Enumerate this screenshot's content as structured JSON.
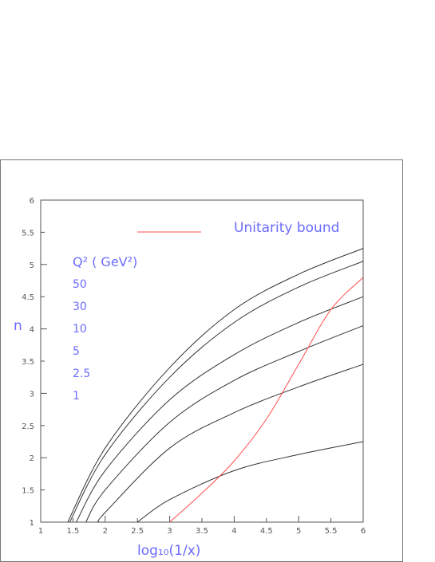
{
  "chart_data": {
    "type": "line",
    "xlabel": "log₁₀(1/x)",
    "ylabel": "n",
    "xlim": [
      1,
      6
    ],
    "ylim": [
      1,
      6
    ],
    "x_ticks": [
      1,
      1.5,
      2,
      2.5,
      3,
      3.5,
      4,
      4.5,
      5,
      5.5,
      6
    ],
    "y_ticks": [
      1,
      1.5,
      2,
      2.5,
      3,
      3.5,
      4,
      4.5,
      5,
      5.5,
      6
    ],
    "x_tick_labels": [
      "1",
      "1.5",
      "2",
      "2.5",
      "3",
      "3.5",
      "4",
      "4.5",
      "5",
      "5.5",
      "6"
    ],
    "y_tick_labels": [
      "1",
      "1.5",
      "2",
      "2.5",
      "3",
      "3.5",
      "4",
      "4.5",
      "5",
      "5.5",
      "6"
    ],
    "legend": {
      "unitarity_label": "Unitarity bound",
      "q2_header": "Q² ( GeV²)",
      "q2_values": [
        "50",
        "30",
        "10",
        "5",
        "2.5",
        "1"
      ]
    },
    "series": [
      {
        "name": "50",
        "color": "#333333",
        "x": [
          1.42,
          2,
          3,
          4,
          5,
          6
        ],
        "y": [
          1,
          2.15,
          3.4,
          4.3,
          4.85,
          5.25
        ]
      },
      {
        "name": "30",
        "color": "#333333",
        "x": [
          1.45,
          2,
          3,
          4,
          5,
          6
        ],
        "y": [
          1,
          2.05,
          3.25,
          4.1,
          4.65,
          5.05
        ]
      },
      {
        "name": "10",
        "color": "#333333",
        "x": [
          1.55,
          2,
          3,
          4,
          5,
          6
        ],
        "y": [
          1,
          1.8,
          2.9,
          3.6,
          4.1,
          4.5
        ]
      },
      {
        "name": "5",
        "color": "#333333",
        "x": [
          1.7,
          2,
          3,
          4,
          5,
          6
        ],
        "y": [
          1,
          1.5,
          2.55,
          3.2,
          3.65,
          4.05
        ]
      },
      {
        "name": "2.5",
        "color": "#333333",
        "x": [
          1.9,
          2,
          3,
          4,
          5,
          6
        ],
        "y": [
          1,
          1.15,
          2.15,
          2.7,
          3.1,
          3.45
        ]
      },
      {
        "name": "1",
        "color": "#333333",
        "x": [
          2.5,
          3,
          4,
          5,
          6
        ],
        "y": [
          1,
          1.35,
          1.8,
          2.05,
          2.25
        ]
      },
      {
        "name": "Unitarity bound",
        "color": "#ff4d4d",
        "x": [
          3,
          3.5,
          4,
          4.5,
          5,
          5.5,
          6
        ],
        "y": [
          1,
          1.45,
          1.95,
          2.6,
          3.45,
          4.3,
          4.8
        ]
      }
    ]
  }
}
